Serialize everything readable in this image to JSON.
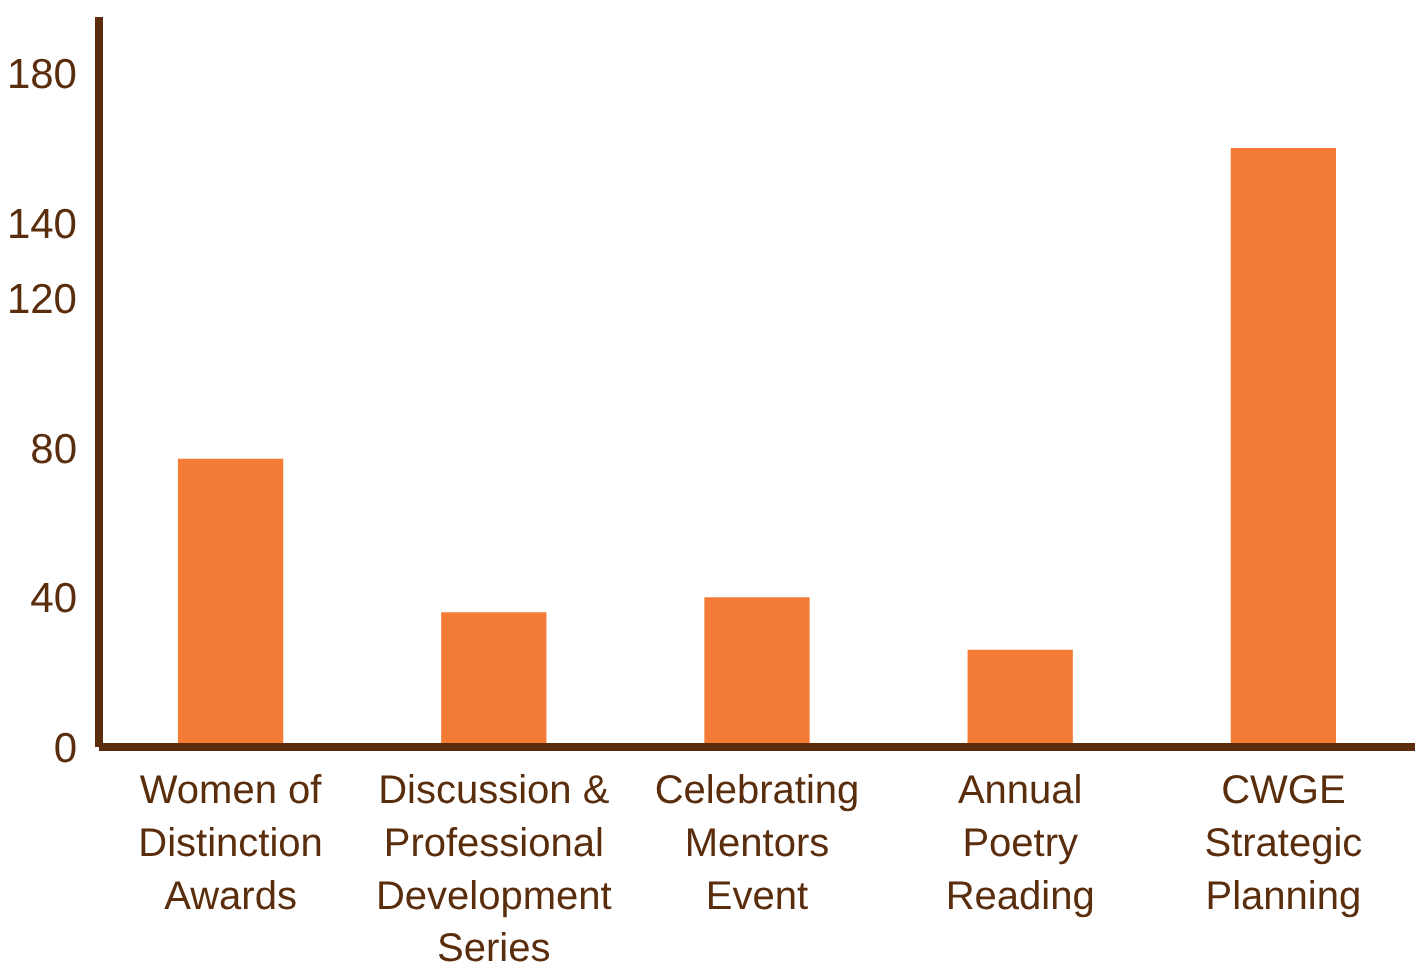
{
  "chart_data": {
    "type": "bar",
    "categories": [
      "Women of Distinction Awards",
      "Discussion & Professional Development Series",
      "Celebrating Mentors Event",
      "Annual Poetry Reading",
      "CWGE Strategic Planning"
    ],
    "values": [
      77,
      36,
      40,
      26,
      160
    ],
    "color": "#f47b35",
    "ylim": [
      0,
      195
    ],
    "yticks": [
      0,
      40,
      80,
      120,
      140,
      180
    ],
    "grid": false
  }
}
